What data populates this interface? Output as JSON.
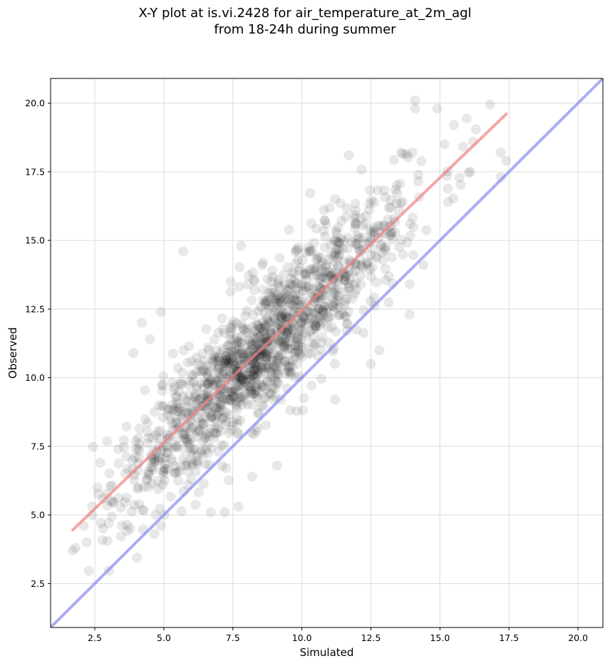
{
  "chart_data": {
    "type": "scatter",
    "title_line1": "X-Y plot at is.vi.2428 for air_temperature_at_2m_agl",
    "title_line2": "from 18-24h during summer",
    "xlabel": "Simulated",
    "ylabel": "Observed",
    "xlim": [
      0.9,
      20.9
    ],
    "ylim": [
      0.9,
      20.9
    ],
    "xticks": [
      "2.5",
      "5.0",
      "7.5",
      "10.0",
      "12.5",
      "15.0",
      "17.5",
      "20.0"
    ],
    "yticks": [
      "2.5",
      "5.0",
      "7.5",
      "10.0",
      "12.5",
      "15.0",
      "17.5",
      "20.0"
    ],
    "grid": true,
    "point_color": "#000000",
    "fit_line": {
      "color": "#f08080",
      "x": [
        1.7,
        17.4
      ],
      "y": [
        4.45,
        19.6
      ]
    },
    "identity_line": {
      "color": "#8080f0",
      "x": [
        0.9,
        20.9
      ],
      "y": [
        0.9,
        20.9
      ]
    },
    "cloud": {
      "n": 1400,
      "x_center": 8.6,
      "x_sd": 2.55,
      "x_min": 1.6,
      "x_max": 17.5,
      "slope": 0.965,
      "intercept": 2.8,
      "resid_sd": 1.2
    },
    "points": [
      [
        1.7,
        3.7
      ],
      [
        1.8,
        3.8
      ],
      [
        2.2,
        4.0
      ],
      [
        2.1,
        4.6
      ],
      [
        2.4,
        5.3
      ],
      [
        2.6,
        6.0
      ],
      [
        2.7,
        6.9
      ],
      [
        2.8,
        4.5
      ],
      [
        3.0,
        4.7
      ],
      [
        2.8,
        5.6
      ],
      [
        4.2,
        12.0
      ],
      [
        4.9,
        12.4
      ],
      [
        4.5,
        11.4
      ],
      [
        3.9,
        10.9
      ],
      [
        14.1,
        20.1
      ],
      [
        14.1,
        19.8
      ],
      [
        14.9,
        19.8
      ],
      [
        15.5,
        19.2
      ],
      [
        13.6,
        18.2
      ],
      [
        14.0,
        18.2
      ],
      [
        11.7,
        18.1
      ],
      [
        17.2,
        18.2
      ],
      [
        17.2,
        17.3
      ],
      [
        17.4,
        17.9
      ],
      [
        16.2,
        18.6
      ],
      [
        16.1,
        17.5
      ],
      [
        12.8,
        11.0
      ],
      [
        12.5,
        10.5
      ],
      [
        13.9,
        12.3
      ],
      [
        11.2,
        9.2
      ],
      [
        9.1,
        6.8
      ],
      [
        8.2,
        6.4
      ],
      [
        7.7,
        5.3
      ],
      [
        7.2,
        5.1
      ],
      [
        6.7,
        5.1
      ],
      [
        4.9,
        4.6
      ],
      [
        4.7,
        5.0
      ],
      [
        5.7,
        14.6
      ],
      [
        7.8,
        14.8
      ],
      [
        10.8,
        16.1
      ],
      [
        14.4,
        14.1
      ],
      [
        15.3,
        16.4
      ],
      [
        13.9,
        13.4
      ]
    ]
  }
}
